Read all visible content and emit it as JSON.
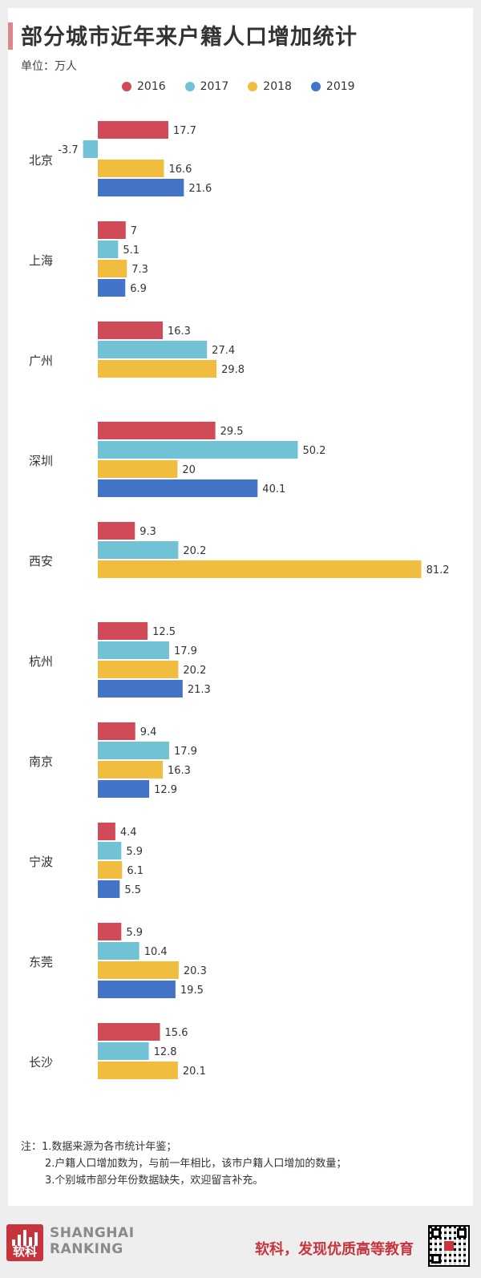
{
  "header": {
    "title": "部分城市近年来户籍人口增加统计",
    "unit": "单位：万人"
  },
  "legend": [
    {
      "label": "2016",
      "color": "#d04a58"
    },
    {
      "label": "2017",
      "color": "#72c2d6"
    },
    {
      "label": "2018",
      "color": "#f0bd3e"
    },
    {
      "label": "2019",
      "color": "#4474c8"
    }
  ],
  "chart_data": {
    "type": "bar",
    "orientation": "horizontal",
    "title": "部分城市近年来户籍人口增加统计",
    "unit": "万人",
    "grid": false,
    "legend_position": "top",
    "categories": [
      "北京",
      "上海",
      "广州",
      "深圳",
      "西安",
      "杭州",
      "南京",
      "宁波",
      "东莞",
      "长沙"
    ],
    "series": [
      {
        "name": "2016",
        "color": "#d04a58",
        "values": [
          17.7,
          7,
          16.3,
          29.5,
          9.3,
          12.5,
          9.4,
          4.4,
          5.9,
          15.6
        ]
      },
      {
        "name": "2017",
        "color": "#72c2d6",
        "values": [
          -3.7,
          5.1,
          27.4,
          50.2,
          20.2,
          17.9,
          17.9,
          5.9,
          10.4,
          12.8
        ]
      },
      {
        "name": "2018",
        "color": "#f0bd3e",
        "values": [
          16.6,
          7.3,
          29.8,
          20,
          81.2,
          20.2,
          16.3,
          6.1,
          20.3,
          20.1
        ]
      },
      {
        "name": "2019",
        "color": "#4474c8",
        "values": [
          21.6,
          6.9,
          null,
          40.1,
          null,
          21.3,
          12.9,
          5.5,
          19.5,
          null
        ]
      }
    ],
    "data_labels": [
      [
        "17.7",
        "7",
        "16.3",
        "29.5",
        "9.3",
        "12.5",
        "9.4",
        "4.4",
        "5.9",
        "15.6"
      ],
      [
        "-3.7",
        "5.1",
        "27.4",
        "50.2",
        "20.2",
        "17.9",
        "17.9",
        "5.9",
        "10.4",
        "12.8"
      ],
      [
        "16.6",
        "7.3",
        "29.8",
        "20",
        "81.2",
        "20.2",
        "16.3",
        "6.1",
        "20.3",
        "20.1"
      ],
      [
        "21.6",
        "6.9",
        null,
        "40.1",
        null,
        "21.3",
        "12.9",
        "5.5",
        "19.5",
        null
      ]
    ]
  },
  "notes": {
    "line1": "注：1.数据来源为各市统计年鉴；",
    "line2": "2.户籍人口增加数为，与前一年相比，该市户籍人口增加的数量；",
    "line3": "3.个别城市部分年份数据缺失，欢迎留言补充。"
  },
  "footer": {
    "logo_text": "软科",
    "brand_line1": "SHANGHAI",
    "brand_line2": "RANKING",
    "slogan": "软科，发现优质高等教育"
  }
}
